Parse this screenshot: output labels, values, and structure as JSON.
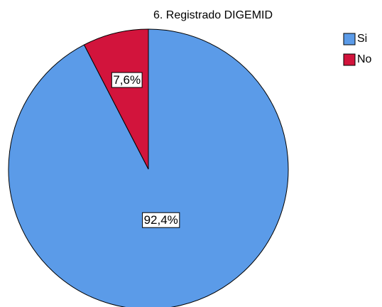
{
  "chart_data": {
    "type": "pie",
    "title": "6. Registrado DIGEMID",
    "categories": [
      "Si",
      "No"
    ],
    "values": [
      92.4,
      7.6
    ],
    "value_labels": [
      "92,4%",
      "7,6%"
    ],
    "colors": [
      "#5b9be8",
      "#d2143c"
    ],
    "legend": "top-right"
  }
}
